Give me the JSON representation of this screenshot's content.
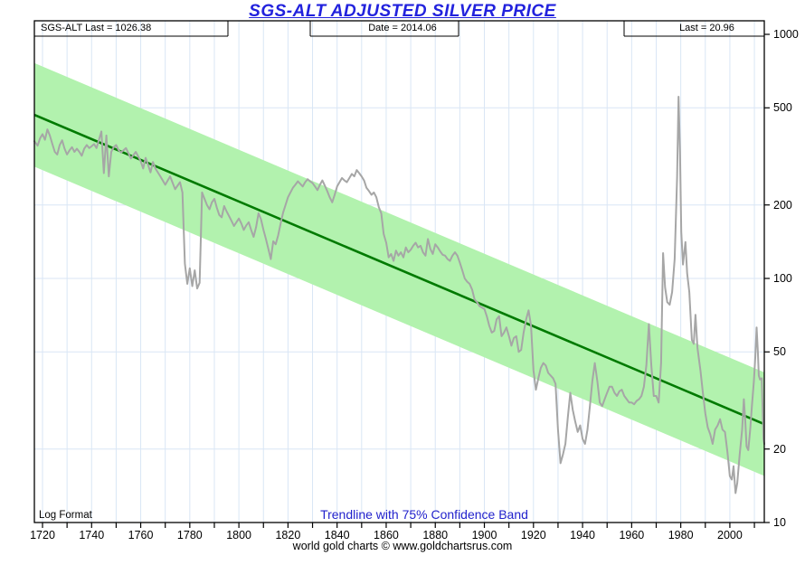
{
  "title": "SGS-ALT ADJUSTED  SILVER PRICE",
  "header": {
    "left": "SGS-ALT Last = 1026.38",
    "center": "Date = 2014.06",
    "right": "Last = 20.96"
  },
  "annotations": {
    "log_format": "Log Format",
    "legend": "Trendline with 75% Confidence Band"
  },
  "footer": "world gold charts © www.goldchartsrus.com",
  "chart_data": {
    "type": "line",
    "title": "SGS-ALT ADJUSTED  SILVER PRICE",
    "y_scale": "log",
    "ylim": [
      10,
      1000
    ],
    "xlim": [
      1716.7,
      2014.06
    ],
    "y_ticks": [
      1000,
      500,
      200,
      100,
      50,
      20,
      10
    ],
    "x_tick_labels": [
      1720,
      1740,
      1760,
      1780,
      1800,
      1820,
      1840,
      1860,
      1880,
      1900,
      1920,
      1940,
      1960,
      1980,
      2000
    ],
    "x_minor_tick_step": 10,
    "grid": true,
    "legend_position": "bottom-center",
    "colors": {
      "title_blue": "#2222dd",
      "legend_blue": "#2222cc",
      "band_green": "#b2f2ae",
      "trend_green": "#007a00",
      "price_gray": "#a6a6a6",
      "grid_blue": "#d9e6f5",
      "frame_black": "#000000"
    },
    "trendline": {
      "label": "Trendline",
      "start_year": 1716.7,
      "start_value": 468,
      "end_year": 2014.06,
      "end_value": 25.3
    },
    "confidence_band": {
      "label": "75% Confidence Band",
      "multiplicative_factor": 1.63
    },
    "series": [
      {
        "name": "SGS-ALT adjusted silver price",
        "last_value": 20.96,
        "last_date": 2014.06,
        "points": [
          [
            1716.7,
            365
          ],
          [
            1718,
            350
          ],
          [
            1719,
            375
          ],
          [
            1720,
            390
          ],
          [
            1721,
            370
          ],
          [
            1722,
            408
          ],
          [
            1723,
            385
          ],
          [
            1724,
            355
          ],
          [
            1725,
            330
          ],
          [
            1726,
            322
          ],
          [
            1727,
            352
          ],
          [
            1728,
            368
          ],
          [
            1729,
            340
          ],
          [
            1730,
            322
          ],
          [
            1731,
            335
          ],
          [
            1732,
            345
          ],
          [
            1733,
            330
          ],
          [
            1734,
            340
          ],
          [
            1735,
            330
          ],
          [
            1736,
            318
          ],
          [
            1737,
            340
          ],
          [
            1738,
            352
          ],
          [
            1739,
            342
          ],
          [
            1740,
            348
          ],
          [
            1741,
            355
          ],
          [
            1742,
            342
          ],
          [
            1743,
            370
          ],
          [
            1744,
            400
          ],
          [
            1745,
            270
          ],
          [
            1746,
            385
          ],
          [
            1747,
            262
          ],
          [
            1748,
            330
          ],
          [
            1749,
            345
          ],
          [
            1750,
            352
          ],
          [
            1751,
            335
          ],
          [
            1752,
            328
          ],
          [
            1754,
            342
          ],
          [
            1756,
            310
          ],
          [
            1758,
            330
          ],
          [
            1760,
            302
          ],
          [
            1761,
            282
          ],
          [
            1762,
            312
          ],
          [
            1763,
            292
          ],
          [
            1764,
            272
          ],
          [
            1765,
            300
          ],
          [
            1766,
            282
          ],
          [
            1768,
            262
          ],
          [
            1770,
            242
          ],
          [
            1772,
            262
          ],
          [
            1774,
            232
          ],
          [
            1776,
            248
          ],
          [
            1777,
            225
          ],
          [
            1778,
            115
          ],
          [
            1779,
            95
          ],
          [
            1780,
            110
          ],
          [
            1781,
            93
          ],
          [
            1782,
            108
          ],
          [
            1783,
            91
          ],
          [
            1784,
            96
          ],
          [
            1785,
            225
          ],
          [
            1786,
            212
          ],
          [
            1787,
            200
          ],
          [
            1788,
            192
          ],
          [
            1789,
            205
          ],
          [
            1790,
            212
          ],
          [
            1791,
            195
          ],
          [
            1792,
            182
          ],
          [
            1793,
            178
          ],
          [
            1794,
            198
          ],
          [
            1795,
            188
          ],
          [
            1796,
            180
          ],
          [
            1797,
            172
          ],
          [
            1798,
            164
          ],
          [
            1799,
            170
          ],
          [
            1800,
            176
          ],
          [
            1801,
            168
          ],
          [
            1802,
            158
          ],
          [
            1803,
            165
          ],
          [
            1804,
            170
          ],
          [
            1805,
            158
          ],
          [
            1806,
            148
          ],
          [
            1807,
            162
          ],
          [
            1808,
            185
          ],
          [
            1809,
            175
          ],
          [
            1810,
            158
          ],
          [
            1811,
            145
          ],
          [
            1812,
            132
          ],
          [
            1813,
            120
          ],
          [
            1814,
            142
          ],
          [
            1815,
            138
          ],
          [
            1816,
            150
          ],
          [
            1817,
            168
          ],
          [
            1818,
            186
          ],
          [
            1819,
            200
          ],
          [
            1820,
            215
          ],
          [
            1821,
            225
          ],
          [
            1822,
            235
          ],
          [
            1823,
            242
          ],
          [
            1824,
            250
          ],
          [
            1825,
            244
          ],
          [
            1826,
            238
          ],
          [
            1827,
            248
          ],
          [
            1828,
            255
          ],
          [
            1829,
            250
          ],
          [
            1830,
            246
          ],
          [
            1831,
            238
          ],
          [
            1832,
            230
          ],
          [
            1833,
            242
          ],
          [
            1834,
            252
          ],
          [
            1835,
            240
          ],
          [
            1836,
            228
          ],
          [
            1837,
            215
          ],
          [
            1838,
            205
          ],
          [
            1839,
            220
          ],
          [
            1840,
            238
          ],
          [
            1841,
            248
          ],
          [
            1842,
            258
          ],
          [
            1843,
            252
          ],
          [
            1844,
            248
          ],
          [
            1845,
            258
          ],
          [
            1846,
            268
          ],
          [
            1847,
            262
          ],
          [
            1848,
            278
          ],
          [
            1849,
            270
          ],
          [
            1850,
            262
          ],
          [
            1851,
            252
          ],
          [
            1852,
            235
          ],
          [
            1853,
            228
          ],
          [
            1854,
            220
          ],
          [
            1855,
            225
          ],
          [
            1856,
            215
          ],
          [
            1857,
            196
          ],
          [
            1858,
            185
          ],
          [
            1859,
            152
          ],
          [
            1860,
            140
          ],
          [
            1861,
            122
          ],
          [
            1862,
            126
          ],
          [
            1863,
            118
          ],
          [
            1864,
            130
          ],
          [
            1865,
            124
          ],
          [
            1866,
            128
          ],
          [
            1867,
            122
          ],
          [
            1868,
            134
          ],
          [
            1869,
            128
          ],
          [
            1870,
            131
          ],
          [
            1871,
            136
          ],
          [
            1872,
            140
          ],
          [
            1873,
            134
          ],
          [
            1874,
            136
          ],
          [
            1875,
            128
          ],
          [
            1876,
            124
          ],
          [
            1877,
            145
          ],
          [
            1878,
            132
          ],
          [
            1879,
            126
          ],
          [
            1880,
            138
          ],
          [
            1881,
            134
          ],
          [
            1882,
            129
          ],
          [
            1883,
            125
          ],
          [
            1884,
            124
          ],
          [
            1885,
            120
          ],
          [
            1886,
            118
          ],
          [
            1887,
            124
          ],
          [
            1888,
            128
          ],
          [
            1889,
            124
          ],
          [
            1890,
            116
          ],
          [
            1891,
            108
          ],
          [
            1892,
            100
          ],
          [
            1893,
            97
          ],
          [
            1894,
            95
          ],
          [
            1895,
            90
          ],
          [
            1896,
            82
          ],
          [
            1897,
            80
          ],
          [
            1898,
            77
          ],
          [
            1899,
            76
          ],
          [
            1900,
            75
          ],
          [
            1901,
            70
          ],
          [
            1902,
            64
          ],
          [
            1903,
            60
          ],
          [
            1904,
            61
          ],
          [
            1905,
            68
          ],
          [
            1906,
            70
          ],
          [
            1907,
            58
          ],
          [
            1908,
            60
          ],
          [
            1909,
            63
          ],
          [
            1910,
            58
          ],
          [
            1911,
            53
          ],
          [
            1912,
            57
          ],
          [
            1913,
            58
          ],
          [
            1914,
            50
          ],
          [
            1915,
            51
          ],
          [
            1916,
            60
          ],
          [
            1917,
            68
          ],
          [
            1918,
            74
          ],
          [
            1919,
            64
          ],
          [
            1920,
            42
          ],
          [
            1921,
            35
          ],
          [
            1922,
            39
          ],
          [
            1923,
            43
          ],
          [
            1924,
            45
          ],
          [
            1925,
            44
          ],
          [
            1926,
            41
          ],
          [
            1927,
            40
          ],
          [
            1928,
            39
          ],
          [
            1929,
            37
          ],
          [
            1930,
            24
          ],
          [
            1931,
            17.5
          ],
          [
            1932,
            19
          ],
          [
            1933,
            21
          ],
          [
            1934,
            27
          ],
          [
            1935,
            34
          ],
          [
            1936,
            29
          ],
          [
            1937,
            26
          ],
          [
            1938,
            23.5
          ],
          [
            1939,
            25
          ],
          [
            1940,
            22
          ],
          [
            1941,
            21
          ],
          [
            1942,
            24
          ],
          [
            1943,
            30
          ],
          [
            1944,
            38
          ],
          [
            1945,
            45
          ],
          [
            1946,
            38
          ],
          [
            1947,
            31
          ],
          [
            1948,
            30
          ],
          [
            1949,
            32
          ],
          [
            1950,
            34
          ],
          [
            1951,
            36
          ],
          [
            1952,
            36
          ],
          [
            1953,
            34
          ],
          [
            1954,
            33
          ],
          [
            1955,
            34.5
          ],
          [
            1956,
            35
          ],
          [
            1957,
            33
          ],
          [
            1958,
            32
          ],
          [
            1959,
            31
          ],
          [
            1960,
            31
          ],
          [
            1961,
            30.5
          ],
          [
            1962,
            31.5
          ],
          [
            1963,
            32
          ],
          [
            1964,
            33
          ],
          [
            1965,
            36
          ],
          [
            1966,
            44
          ],
          [
            1967,
            65
          ],
          [
            1968,
            44
          ],
          [
            1969,
            33
          ],
          [
            1970,
            33
          ],
          [
            1971,
            31
          ],
          [
            1972,
            45
          ],
          [
            1972.8,
            127
          ],
          [
            1973.6,
            92
          ],
          [
            1974.5,
            80
          ],
          [
            1975.5,
            78
          ],
          [
            1976.5,
            88
          ],
          [
            1977.5,
            120
          ],
          [
            1978.5,
            260
          ],
          [
            1979.1,
            555
          ],
          [
            1979.7,
            330
          ],
          [
            1980.2,
            155
          ],
          [
            1980.9,
            114
          ],
          [
            1981.9,
            141
          ],
          [
            1982.6,
            105
          ],
          [
            1983.5,
            88
          ],
          [
            1984.5,
            56
          ],
          [
            1985.3,
            54
          ],
          [
            1986,
            71
          ],
          [
            1986.8,
            52
          ],
          [
            1988,
            42
          ],
          [
            1989,
            34
          ],
          [
            1990,
            28
          ],
          [
            1991,
            24.5
          ],
          [
            1992,
            23
          ],
          [
            1993,
            21
          ],
          [
            1994,
            24
          ],
          [
            1995,
            25
          ],
          [
            1996,
            26.5
          ],
          [
            1997,
            24
          ],
          [
            1998,
            23.5
          ],
          [
            1999,
            19.5
          ],
          [
            2000,
            15.5
          ],
          [
            2000.8,
            15
          ],
          [
            2001.5,
            17
          ],
          [
            2002.3,
            13.2
          ],
          [
            2003,
            14.5
          ],
          [
            2004,
            19
          ],
          [
            2005,
            24
          ],
          [
            2005.7,
            32
          ],
          [
            2006.3,
            26
          ],
          [
            2006.8,
            20.5
          ],
          [
            2007.5,
            19.8
          ],
          [
            2008.3,
            24
          ],
          [
            2009,
            30
          ],
          [
            2009.8,
            38
          ],
          [
            2010.4,
            48
          ],
          [
            2010.9,
            63
          ],
          [
            2011.4,
            50
          ],
          [
            2011.8,
            40
          ],
          [
            2012.3,
            38.5
          ],
          [
            2013,
            39
          ],
          [
            2013.4,
            28
          ],
          [
            2013.7,
            22
          ],
          [
            2014.06,
            20.96
          ]
        ]
      }
    ]
  }
}
